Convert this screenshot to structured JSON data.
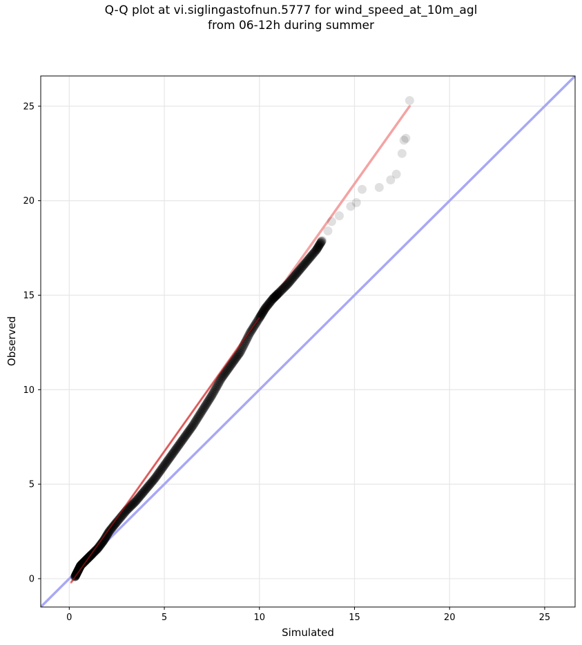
{
  "chart_data": {
    "type": "scatter",
    "title_line1": "Q-Q plot at vi.siglingastofnun.5777 for wind_speed_at_10m_agl",
    "title_line2": "from 06-12h during summer",
    "xlabel": "Simulated",
    "ylabel": "Observed",
    "xlim": [
      -1.5,
      26.6
    ],
    "ylim": [
      -1.5,
      26.6
    ],
    "xticks": [
      0,
      5,
      10,
      15,
      20,
      25
    ],
    "yticks": [
      0,
      5,
      10,
      15,
      20,
      25
    ],
    "grid": true,
    "series": [
      {
        "marker_color": "#000000",
        "points": [
          [
            0.3,
            0.1
          ],
          [
            0.4,
            0.3
          ],
          [
            0.5,
            0.5
          ],
          [
            0.6,
            0.7
          ],
          [
            0.8,
            0.9
          ],
          [
            1.0,
            1.1
          ],
          [
            1.2,
            1.3
          ],
          [
            1.5,
            1.6
          ],
          [
            1.8,
            2.0
          ],
          [
            2.1,
            2.5
          ],
          [
            2.5,
            3.0
          ],
          [
            3.0,
            3.6
          ],
          [
            3.5,
            4.1
          ],
          [
            4.0,
            4.7
          ],
          [
            4.5,
            5.3
          ],
          [
            5.0,
            6.0
          ],
          [
            5.5,
            6.7
          ],
          [
            6.0,
            7.4
          ],
          [
            6.5,
            8.1
          ],
          [
            7.0,
            8.9
          ],
          [
            7.5,
            9.7
          ],
          [
            8.0,
            10.6
          ],
          [
            8.5,
            11.3
          ],
          [
            9.0,
            12.0
          ],
          [
            9.5,
            13.0
          ],
          [
            10.0,
            13.8
          ],
          [
            10.3,
            14.3
          ],
          [
            10.7,
            14.8
          ],
          [
            11.0,
            15.1
          ],
          [
            11.5,
            15.6
          ],
          [
            12.0,
            16.2
          ],
          [
            12.5,
            16.8
          ],
          [
            13.0,
            17.4
          ],
          [
            13.3,
            17.9
          ],
          [
            13.6,
            18.4
          ],
          [
            13.8,
            18.9
          ],
          [
            14.2,
            19.2
          ],
          [
            14.8,
            19.7
          ],
          [
            15.1,
            19.9
          ],
          [
            15.4,
            20.6
          ],
          [
            16.3,
            20.7
          ],
          [
            16.9,
            21.1
          ],
          [
            17.2,
            21.4
          ],
          [
            17.5,
            22.5
          ],
          [
            17.6,
            23.2
          ],
          [
            17.7,
            23.3
          ],
          [
            17.9,
            25.3
          ]
        ]
      }
    ],
    "fit_line": {
      "color": "#f4a3a3",
      "x": [
        0.1,
        17.9
      ],
      "y": [
        -0.2,
        25.0
      ]
    },
    "identity_line": {
      "color": "#a8a8f5",
      "x": [
        -1.5,
        26.6
      ],
      "y": [
        -1.5,
        26.6
      ]
    }
  }
}
